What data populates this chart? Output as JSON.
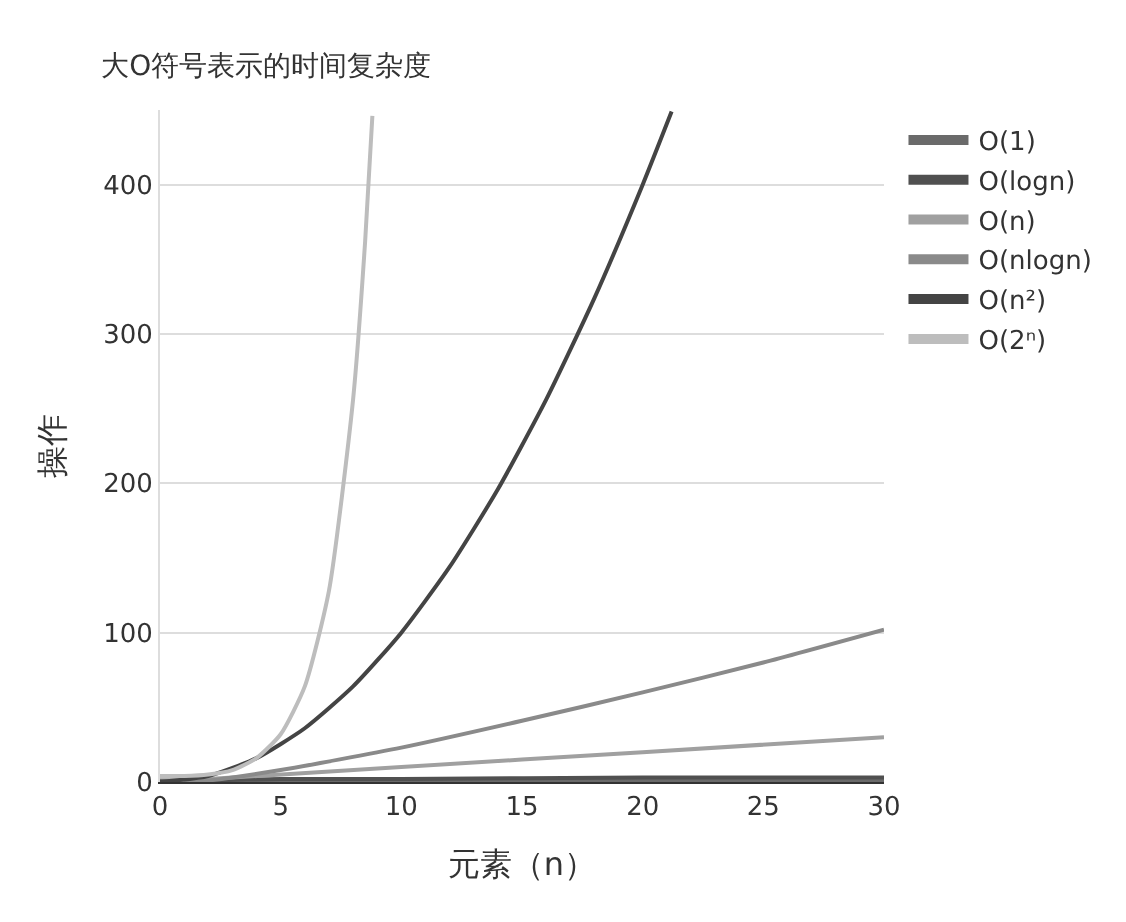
{
  "chart_data": {
    "type": "line",
    "title": "大O符号表示的时间复杂度",
    "xlabel": "元素（n）",
    "ylabel": "操作",
    "xlim": [
      0,
      30
    ],
    "ylim": [
      0,
      450
    ],
    "xticks": [
      0,
      5,
      10,
      15,
      20,
      25,
      30
    ],
    "yticks": [
      0,
      100,
      200,
      300,
      400
    ],
    "grid": "y",
    "legend": "top right",
    "marker": "none",
    "line_style": "solid",
    "series": [
      {
        "name": "O(1)",
        "color": "#6a6a6a",
        "x": [
          0,
          10,
          20,
          30
        ],
        "values": [
          1,
          1,
          1,
          1
        ]
      },
      {
        "name": "O(logn)",
        "color": "#505050",
        "x": [
          1,
          2,
          5,
          10,
          20,
          30
        ],
        "values": [
          0,
          1,
          2,
          2,
          3,
          3
        ]
      },
      {
        "name": "O(n)",
        "color": "#a0a0a0",
        "x": [
          0,
          10,
          20,
          30
        ],
        "values": [
          0,
          10,
          20,
          30
        ]
      },
      {
        "name": "O(nlogn)",
        "color": "#8a8a8a",
        "x": [
          1,
          2,
          5,
          10,
          15,
          20,
          25,
          30
        ],
        "values": [
          0,
          1,
          8,
          23,
          41,
          60,
          80,
          102
        ]
      },
      {
        "name": "O(n²)",
        "color": "#444444",
        "x": [
          0,
          2,
          4,
          6,
          8,
          10,
          12,
          14,
          16,
          18,
          20,
          21.2
        ],
        "values": [
          0,
          4,
          16,
          36,
          64,
          100,
          144,
          196,
          256,
          324,
          400,
          449
        ]
      },
      {
        "name": "O(2ⁿ)",
        "color": "#bdbdbd",
        "x": [
          0,
          1,
          2,
          3,
          4,
          5,
          6,
          7,
          8,
          8.5,
          8.8
        ],
        "values": [
          4,
          4,
          5,
          8,
          16,
          32,
          64,
          128,
          256,
          362,
          446
        ]
      }
    ]
  }
}
